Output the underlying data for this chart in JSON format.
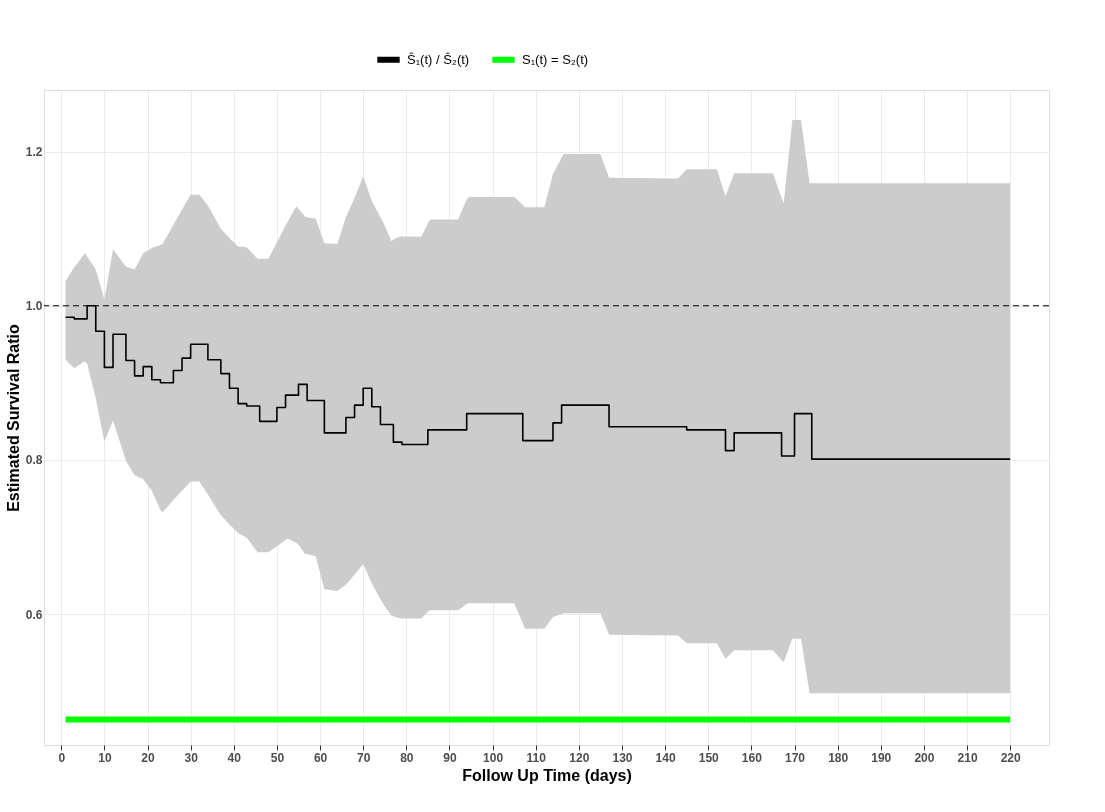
{
  "chart_data": {
    "type": "step",
    "xlabel": "Follow Up Time (days)",
    "ylabel": "Estimated Survival Ratio",
    "xlim": [
      -4,
      229
    ],
    "ylim": [
      0.43,
      1.28
    ],
    "xticks": [
      0,
      10,
      20,
      30,
      40,
      50,
      60,
      70,
      80,
      90,
      100,
      110,
      120,
      130,
      140,
      150,
      160,
      170,
      180,
      190,
      200,
      210,
      220
    ],
    "yticks": [
      0.6,
      0.8,
      {
        "value": 1,
        "label": "1.0"
      },
      1.2
    ],
    "grid": true,
    "legend": "top",
    "ref_lines": [
      {
        "axis": "y",
        "value": 1,
        "color": "#000000",
        "line_style": "dashed"
      }
    ],
    "series": [
      {
        "name": "Ŝ₁(t) / Ŝ₂(t)",
        "color": "#000000",
        "x": [
          1,
          3,
          5.5,
          6,
          8,
          10,
          12,
          15,
          17,
          19,
          21,
          23,
          23.5,
          26,
          28,
          30,
          32,
          34,
          37,
          39,
          41,
          43,
          45.5,
          46,
          48,
          50,
          52,
          52.5,
          54.5,
          55,
          56.5,
          57,
          59,
          61,
          64,
          66,
          68,
          70,
          72,
          74,
          75,
          76.5,
          77,
          78.5,
          79,
          83.5,
          85,
          85.5,
          92,
          94,
          94.5,
          105,
          107,
          107.5,
          112,
          114,
          116,
          116.5,
          125,
          127,
          143,
          145,
          152,
          154,
          156,
          165,
          167,
          167.5,
          169.5,
          170,
          171.5,
          173.5,
          174,
          220
        ],
        "values": [
          0.985,
          0.983,
          0.983,
          1.0,
          0.967,
          0.92,
          0.963,
          0.929,
          0.909,
          0.921,
          0.904,
          0.9,
          0.9,
          0.916,
          0.932,
          0.95,
          0.95,
          0.93,
          0.912,
          0.893,
          0.873,
          0.87,
          0.87,
          0.85,
          0.85,
          0.868,
          0.884,
          0.884,
          0.884,
          0.898,
          0.898,
          0.877,
          0.877,
          0.835,
          0.835,
          0.855,
          0.871,
          0.893,
          0.869,
          0.846,
          0.846,
          0.846,
          0.823,
          0.823,
          0.82,
          0.82,
          0.839,
          0.839,
          0.839,
          0.86,
          0.86,
          0.86,
          0.825,
          0.825,
          0.825,
          0.848,
          0.871,
          0.871,
          0.871,
          0.843,
          0.843,
          0.839,
          0.839,
          0.812,
          0.835,
          0.835,
          0.805,
          0.805,
          0.805,
          0.86,
          0.86,
          0.86,
          0.801,
          0.801
        ],
        "lower": [
          0.93,
          0.919,
          0.928,
          0.925,
          0.88,
          0.824,
          0.851,
          0.799,
          0.78,
          0.775,
          0.76,
          0.735,
          0.732,
          0.748,
          0.76,
          0.772,
          0.772,
          0.755,
          0.728,
          0.716,
          0.705,
          0.699,
          0.68,
          0.68,
          0.68,
          0.688,
          0.696,
          0.698,
          0.692,
          0.69,
          0.678,
          0.678,
          0.675,
          0.632,
          0.63,
          0.638,
          0.651,
          0.665,
          0.64,
          0.619,
          0.61,
          0.598,
          0.597,
          0.594,
          0.594,
          0.594,
          0.603,
          0.605,
          0.605,
          0.613,
          0.614,
          0.614,
          0.588,
          0.581,
          0.581,
          0.596,
          0.6,
          0.601,
          0.601,
          0.573,
          0.572,
          0.562,
          0.562,
          0.542,
          0.553,
          0.553,
          0.54,
          0.538,
          0.568,
          0.568,
          0.568,
          0.497,
          0.497,
          0.497
        ],
        "upper": [
          1.032,
          1.05,
          1.068,
          1.064,
          1.047,
          1.008,
          1.073,
          1.051,
          1.047,
          1.068,
          1.075,
          1.079,
          1.08,
          1.105,
          1.125,
          1.144,
          1.144,
          1.13,
          1.1,
          1.088,
          1.077,
          1.076,
          1.061,
          1.061,
          1.061,
          1.082,
          1.104,
          1.109,
          1.129,
          1.126,
          1.116,
          1.115,
          1.113,
          1.081,
          1.08,
          1.115,
          1.14,
          1.168,
          1.136,
          1.115,
          1.104,
          1.084,
          1.086,
          1.09,
          1.09,
          1.09,
          1.107,
          1.112,
          1.112,
          1.138,
          1.141,
          1.141,
          1.131,
          1.128,
          1.128,
          1.171,
          1.192,
          1.197,
          1.197,
          1.166,
          1.165,
          1.177,
          1.177,
          1.142,
          1.172,
          1.172,
          1.14,
          1.133,
          1.241,
          1.241,
          1.241,
          1.159,
          1.159,
          1.159
        ]
      },
      {
        "type": "line",
        "name": "S₁(t) = S₂(t)",
        "color": "#00ff00",
        "x": [
          1,
          220
        ],
        "values": [
          0.463,
          0.463
        ]
      }
    ]
  }
}
